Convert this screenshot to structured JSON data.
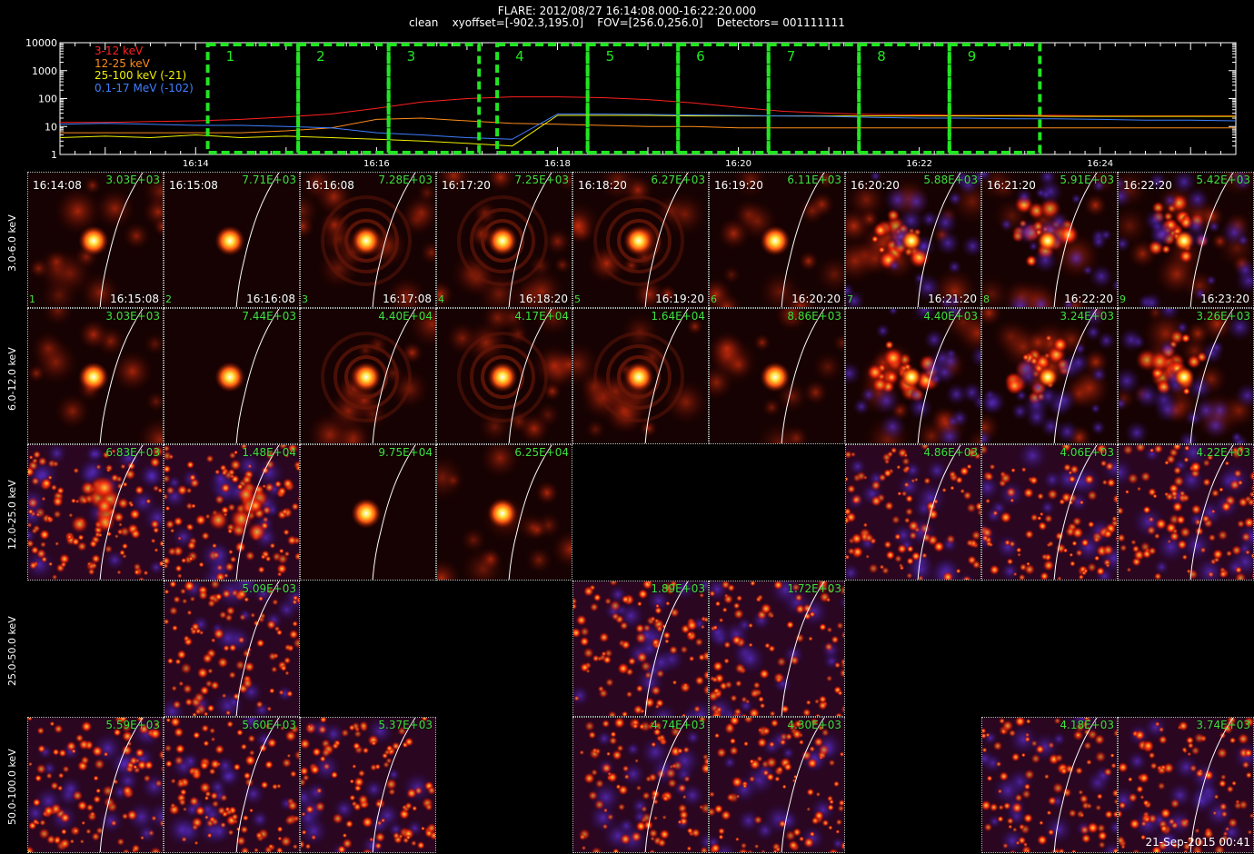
{
  "header": {
    "line1": "FLARE: 2012/08/27 16:14:08.000-16:22:20.000",
    "line2": "clean    xyoffset=[-902.3,195.0]    FOV=[256.0,256.0]    Detectors= 001111111"
  },
  "footer": "21-Sep-2015 00:41",
  "chart_data": [
    {
      "type": "line",
      "title": "",
      "xlabel": "",
      "ylabel": "",
      "y_scale": "log",
      "ylim": [
        1,
        10000
      ],
      "y_ticks": [
        "1",
        "10",
        "100",
        "1000",
        "10000"
      ],
      "xlim": [
        "16:12:30",
        "16:25:30"
      ],
      "x_ticks": [
        "16:14",
        "16:16",
        "16:18",
        "16:20",
        "16:22",
        "16:24"
      ],
      "x": [
        "16:12:30",
        "16:13:00",
        "16:13:30",
        "16:14:00",
        "16:14:30",
        "16:15:00",
        "16:15:30",
        "16:16:00",
        "16:16:30",
        "16:17:00",
        "16:17:30",
        "16:18:00",
        "16:18:30",
        "16:19:00",
        "16:19:30",
        "16:20:00",
        "16:20:30",
        "16:21:00",
        "16:21:30",
        "16:22:00",
        "16:22:30",
        "16:23:00",
        "16:23:30",
        "16:24:00",
        "16:24:30",
        "16:25:00",
        "16:25:30"
      ],
      "series": [
        {
          "name": "3-12 keV",
          "color": "#ff2020",
          "values": [
            14,
            14,
            15,
            16,
            18,
            22,
            28,
            45,
            75,
            100,
            115,
            115,
            108,
            92,
            70,
            48,
            35,
            30,
            27,
            26,
            25,
            25,
            25,
            24,
            24,
            24,
            24
          ]
        },
        {
          "name": "12-25 keV",
          "color": "#ff8c1a",
          "values": [
            6,
            6,
            6,
            6,
            6,
            7,
            9,
            18,
            20,
            16,
            13,
            12,
            11,
            10,
            10,
            9,
            9,
            9,
            9,
            9,
            9,
            9,
            9,
            9,
            9,
            9,
            9
          ]
        },
        {
          "name": "25-100 keV (-21)",
          "color": "#f0f000",
          "values": [
            4,
            4.5,
            4,
            5,
            4,
            4.5,
            4,
            3.5,
            3,
            2.5,
            2,
            25,
            25,
            25,
            24,
            24,
            24,
            24,
            24,
            24,
            24,
            24,
            23,
            23,
            23,
            23,
            23
          ]
        },
        {
          "name": "0.1-17 MeV (-102)",
          "color": "#3f7fff",
          "values": [
            12,
            13,
            12,
            11,
            11,
            10,
            9,
            6,
            5,
            4,
            3.5,
            28,
            28,
            27,
            26,
            25,
            24,
            23,
            21,
            20,
            20,
            19,
            19,
            18,
            17,
            17,
            16
          ]
        }
      ],
      "intervals": [
        {
          "label": "1",
          "start": "16:14:08",
          "end": "16:15:08"
        },
        {
          "label": "2",
          "start": "16:15:08",
          "end": "16:16:08"
        },
        {
          "label": "3",
          "start": "16:16:08",
          "end": "16:17:08"
        },
        {
          "label": "4",
          "start": "16:17:20",
          "end": "16:18:20"
        },
        {
          "label": "5",
          "start": "16:18:20",
          "end": "16:19:20"
        },
        {
          "label": "6",
          "start": "16:19:20",
          "end": "16:20:20"
        },
        {
          "label": "7",
          "start": "16:20:20",
          "end": "16:21:20"
        },
        {
          "label": "8",
          "start": "16:21:20",
          "end": "16:22:20"
        },
        {
          "label": "9",
          "start": "16:22:20",
          "end": "16:23:20"
        }
      ]
    },
    {
      "type": "heatmap",
      "title": "",
      "xlabel": "",
      "ylabel": "",
      "row_labels": [
        "3.0-6.0 keV",
        "6.0-12.0 keV",
        "12.0-25.0 keV",
        "25.0-50.0 keV",
        "50.0-100.0 keV"
      ],
      "columns": [
        {
          "index": "1",
          "start": "16:14:08",
          "end": "16:15:08"
        },
        {
          "index": "2",
          "start": "16:15:08",
          "end": "16:16:08"
        },
        {
          "index": "3",
          "start": "16:16:08",
          "end": "16:17:08"
        },
        {
          "index": "4",
          "start": "16:17:20",
          "end": "16:18:20"
        },
        {
          "index": "5",
          "start": "16:18:20",
          "end": "16:19:20"
        },
        {
          "index": "6",
          "start": "16:19:20",
          "end": "16:20:20"
        },
        {
          "index": "7",
          "start": "16:20:20",
          "end": "16:21:20"
        },
        {
          "index": "8",
          "start": "16:21:20",
          "end": "16:22:20"
        },
        {
          "index": "9",
          "start": "16:22:20",
          "end": "16:23:20"
        }
      ],
      "peaks": [
        [
          "3.03E+03",
          "7.71E+03",
          "7.28E+03",
          "7.25E+03",
          "6.27E+03",
          "6.11E+03",
          "5.88E+03",
          "5.91E+03",
          "5.42E+03"
        ],
        [
          "3.03E+03",
          "7.44E+03",
          "4.40E+04",
          "4.17E+04",
          "1.64E+04",
          "8.86E+03",
          "4.40E+03",
          "3.24E+03",
          "3.26E+03"
        ],
        [
          "6.83E+03",
          "1.48E+04",
          "9.75E+04",
          "6.25E+04",
          null,
          null,
          "4.86E+03",
          "4.06E+03",
          "4.22E+03"
        ],
        [
          null,
          "5.09E+03",
          null,
          null,
          "1.89E+03",
          "1.72E+03",
          null,
          null,
          null
        ],
        [
          "5.59E+03",
          "5.60E+03",
          "5.37E+03",
          null,
          "4.74E+03",
          "4.30E+03",
          null,
          "4.18E+03",
          "3.74E+03"
        ]
      ],
      "image_types": [
        [
          "compact-diffuse",
          "compact",
          "compact-rings",
          "compact-rings",
          "compact-rings",
          "compact-diffuse",
          "diffuse-bright",
          "diffuse-bright",
          "diffuse-bright"
        ],
        [
          "compact-diffuse",
          "compact",
          "compact-rings",
          "compact-rings",
          "compact-rings",
          "compact-diffuse",
          "diffuse-bright",
          "diffuse-bright",
          "diffuse-bright"
        ],
        [
          "noise-bright",
          "noise-bright",
          "compact",
          "compact-diffuse",
          null,
          null,
          "noise",
          "noise",
          "noise"
        ],
        [
          null,
          "noise",
          null,
          null,
          "noise",
          "noise",
          null,
          null,
          null
        ],
        [
          "noise",
          "noise",
          "noise",
          null,
          "noise",
          "noise",
          null,
          "noise",
          "noise"
        ]
      ]
    }
  ]
}
